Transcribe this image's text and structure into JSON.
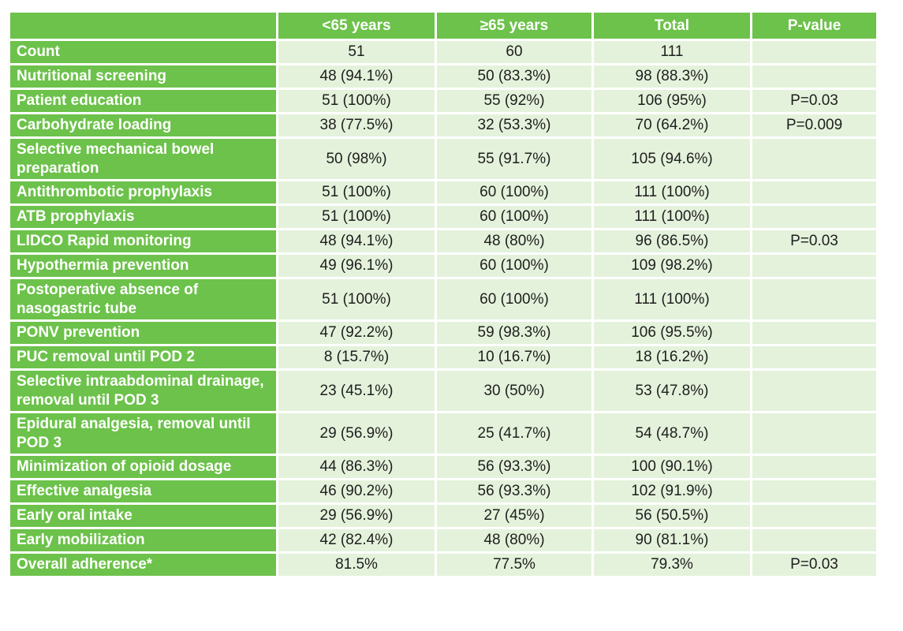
{
  "table": {
    "headers": [
      "",
      "<65 years",
      "≥65 years",
      "Total",
      "P-value"
    ],
    "rows": [
      {
        "label": "Count",
        "lt65": "51",
        "ge65": "60",
        "total": "111",
        "p": ""
      },
      {
        "label": "Nutritional screening",
        "lt65": "48 (94.1%)",
        "ge65": "50 (83.3%)",
        "total": "98 (88.3%)",
        "p": ""
      },
      {
        "label": "Patient education",
        "lt65": "51 (100%)",
        "ge65": "55 (92%)",
        "total": "106 (95%)",
        "p": "P=0.03"
      },
      {
        "label": "Carbohydrate loading",
        "lt65": "38 (77.5%)",
        "ge65": "32 (53.3%)",
        "total": "70 (64.2%)",
        "p": "P=0.009"
      },
      {
        "label": "Selective mechanical bowel preparation",
        "lt65": "50 (98%)",
        "ge65": "55 (91.7%)",
        "total": "105 (94.6%)",
        "p": ""
      },
      {
        "label": "Antithrombotic prophylaxis",
        "lt65": "51 (100%)",
        "ge65": "60 (100%)",
        "total": "111 (100%)",
        "p": ""
      },
      {
        "label": "ATB prophylaxis",
        "lt65": "51 (100%)",
        "ge65": "60 (100%)",
        "total": "111 (100%)",
        "p": ""
      },
      {
        "label": "LIDCO Rapid monitoring",
        "lt65": "48 (94.1%)",
        "ge65": "48 (80%)",
        "total": "96 (86.5%)",
        "p": "P=0.03"
      },
      {
        "label": "Hypothermia prevention",
        "lt65": "49 (96.1%)",
        "ge65": "60 (100%)",
        "total": "109 (98.2%)",
        "p": ""
      },
      {
        "label": "Postoperative absence of nasogastric tube",
        "lt65": "51 (100%)",
        "ge65": "60 (100%)",
        "total": "111 (100%)",
        "p": ""
      },
      {
        "label": "PONV prevention",
        "lt65": "47 (92.2%)",
        "ge65": "59 (98.3%)",
        "total": "106 (95.5%)",
        "p": ""
      },
      {
        "label": "PUC removal until POD 2",
        "lt65": "8 (15.7%)",
        "ge65": "10 (16.7%)",
        "total": "18 (16.2%)",
        "p": ""
      },
      {
        "label": "Selective intraabdominal drainage, removal until POD 3",
        "lt65": "23 (45.1%)",
        "ge65": "30 (50%)",
        "total": "53 (47.8%)",
        "p": ""
      },
      {
        "label": "Epidural analgesia, removal until POD 3",
        "lt65": "29 (56.9%)",
        "ge65": "25 (41.7%)",
        "total": "54 (48.7%)",
        "p": ""
      },
      {
        "label": "Minimization of opioid dosage",
        "lt65": "44 (86.3%)",
        "ge65": "56 (93.3%)",
        "total": "100 (90.1%)",
        "p": ""
      },
      {
        "label": "Effective analgesia",
        "lt65": "46 (90.2%)",
        "ge65": "56 (93.3%)",
        "total": "102 (91.9%)",
        "p": ""
      },
      {
        "label": "Early oral intake",
        "lt65": "29 (56.9%)",
        "ge65": "27 (45%)",
        "total": "56 (50.5%)",
        "p": ""
      },
      {
        "label": "Early mobilization",
        "lt65": "42 (82.4%)",
        "ge65": "48 (80%)",
        "total": "90 (81.1%)",
        "p": ""
      },
      {
        "label": "Overall adherence*",
        "lt65": "81.5%",
        "ge65": "77.5%",
        "total": "79.3%",
        "p": "P=0.03"
      }
    ],
    "colors": {
      "header_green": "#6cc24a",
      "cell_light_green": "#e4f2db",
      "label_text": "#ffffff",
      "value_text": "#1e1e1e"
    }
  }
}
